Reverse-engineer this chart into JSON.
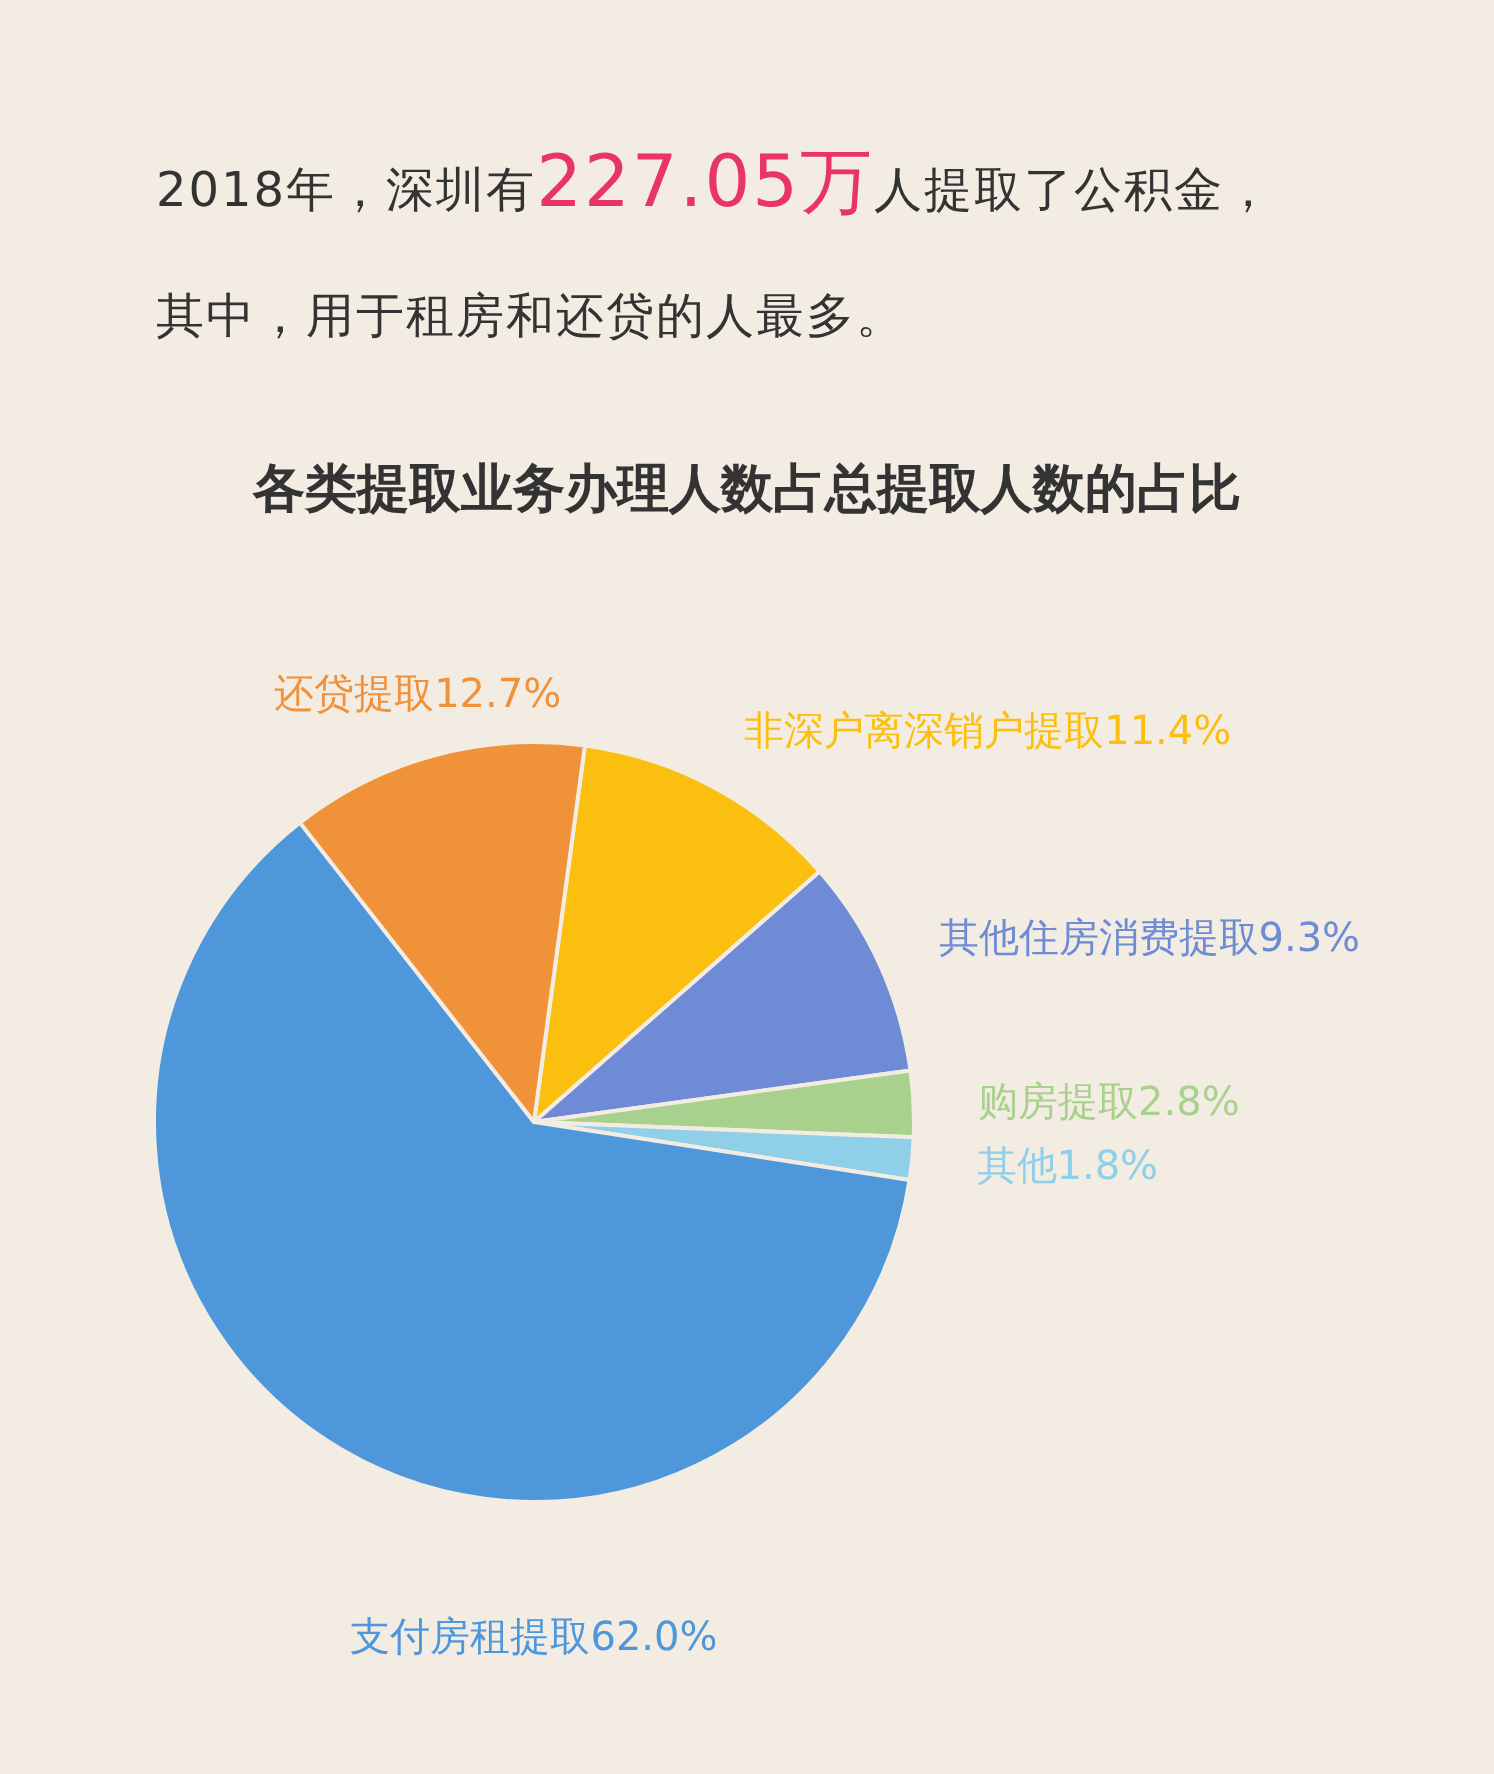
{
  "chart_data": {
    "type": "pie",
    "title": "各类提取业务办理人数占总提取人数的占比",
    "annotations": [
      "2018年，深圳有227.05万人提取了公积金，",
      "其中，用于租房和还贷的人最多。"
    ],
    "categories": [
      "非深户离深销户提取",
      "其他住房消费提取",
      "购房提取",
      "其他",
      "支付房租提取",
      "还贷提取"
    ],
    "values": [
      11.4,
      9.3,
      2.8,
      1.8,
      62.0,
      12.7
    ],
    "value_labels": [
      "11.4%",
      "9.3%",
      "2.8%",
      "1.8%",
      "62.0%",
      "12.7%"
    ],
    "colors": [
      "#fbbf10",
      "#6f8bd6",
      "#a9d18e",
      "#8fcfe8",
      "#4e97db",
      "#f0923a"
    ]
  }
}
